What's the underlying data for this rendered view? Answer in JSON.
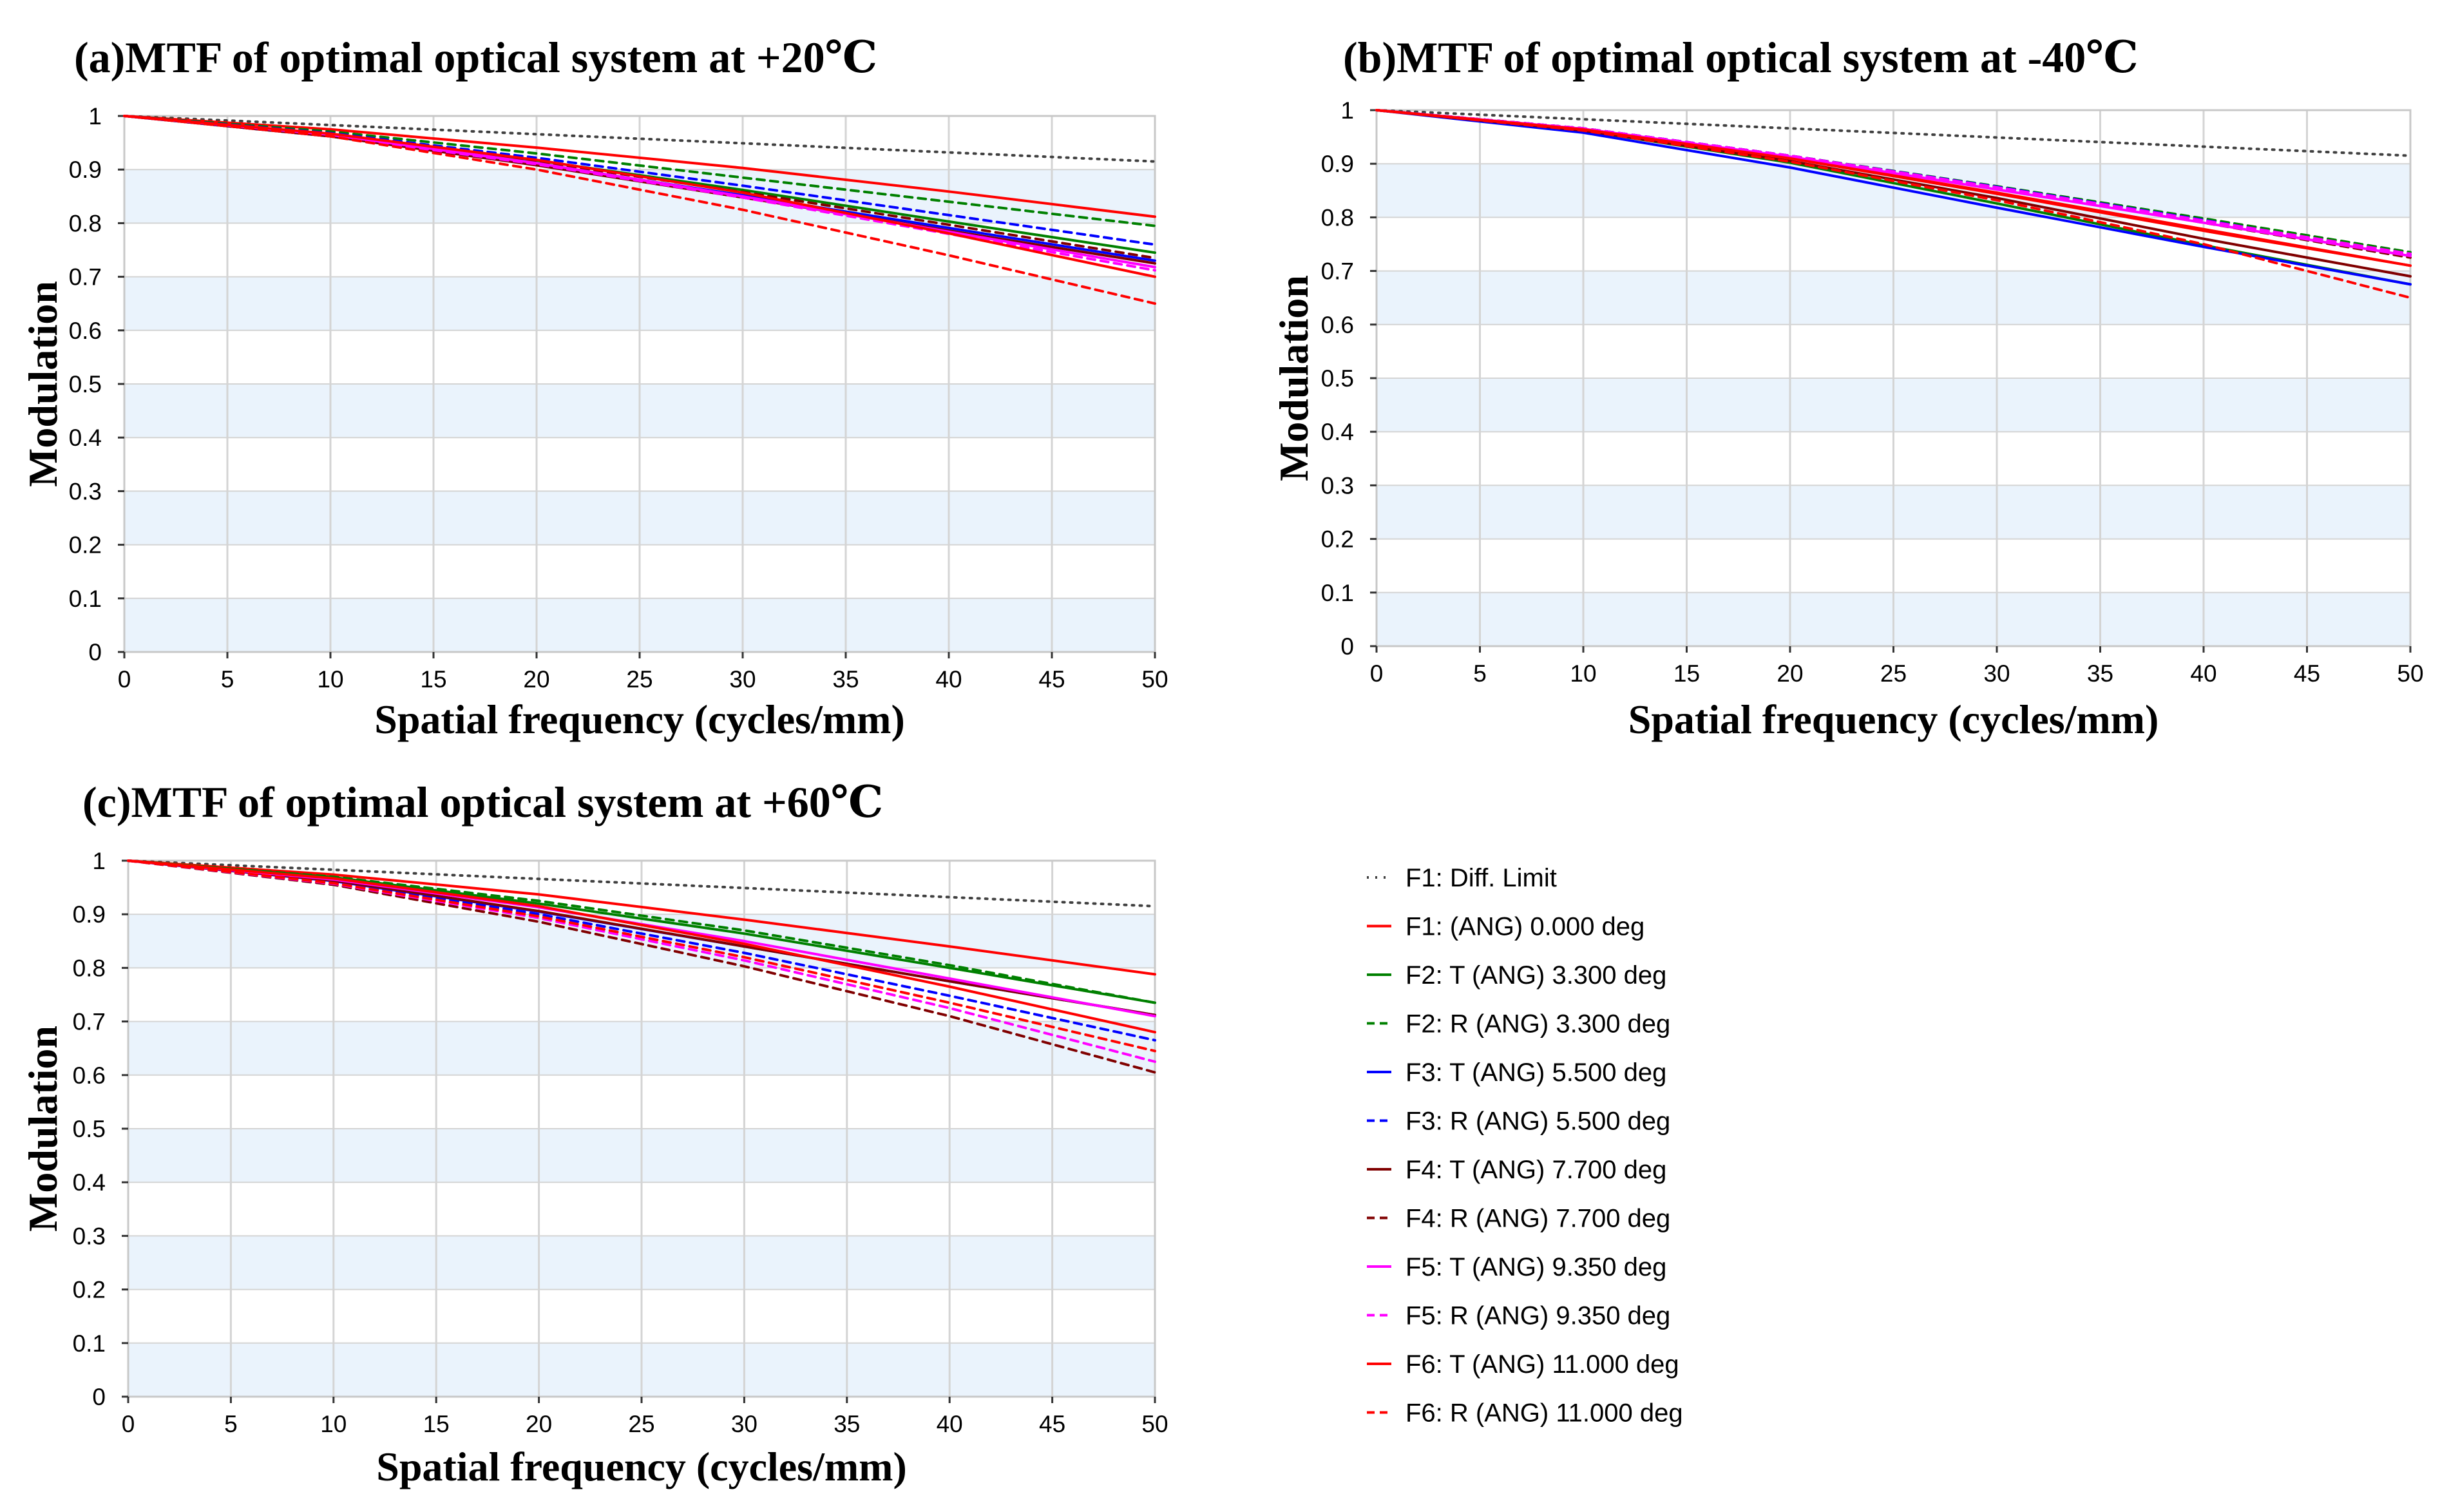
{
  "legend_entries": [
    {
      "label": "F1: Diff. Limit",
      "color": "#404040",
      "dash": "dot"
    },
    {
      "label": "F1: (ANG) 0.000 deg",
      "color": "#ff0000",
      "dash": "solid"
    },
    {
      "label": "F2: T (ANG) 3.300 deg",
      "color": "#008000",
      "dash": "solid"
    },
    {
      "label": "F2: R (ANG) 3.300 deg",
      "color": "#008000",
      "dash": "dash"
    },
    {
      "label": "F3: T (ANG) 5.500 deg",
      "color": "#0000ff",
      "dash": "solid"
    },
    {
      "label": "F3: R (ANG) 5.500 deg",
      "color": "#0000ff",
      "dash": "dash"
    },
    {
      "label": "F4: T (ANG) 7.700 deg",
      "color": "#800000",
      "dash": "solid"
    },
    {
      "label": "F4: R (ANG) 7.700 deg",
      "color": "#800000",
      "dash": "dash"
    },
    {
      "label": "F5: T (ANG) 9.350 deg",
      "color": "#ff00ff",
      "dash": "solid"
    },
    {
      "label": "F5: R (ANG) 9.350 deg",
      "color": "#ff00ff",
      "dash": "dash"
    },
    {
      "label": "F6: T (ANG) 11.000 deg",
      "color": "#ff0000",
      "dash": "solid"
    },
    {
      "label": "F6: R (ANG) 11.000 deg",
      "color": "#ff0000",
      "dash": "dash"
    }
  ],
  "colors": {
    "band": "#eaf3fc",
    "grid": "#d4d4d4",
    "frame": "#c8c8c8"
  },
  "chart_data": [
    {
      "type": "line",
      "title": "(a)MTF of optimal optical system at +20℃",
      "xlabel": "Spatial frequency (cycles/mm)",
      "ylabel": "Modulation",
      "xlim": [
        0,
        50
      ],
      "ylim": [
        0,
        1
      ],
      "xticks": [
        "0",
        "5",
        "10",
        "15",
        "20",
        "25",
        "30",
        "35",
        "40",
        "45",
        "50"
      ],
      "yticks": [
        "0",
        "0.1",
        "0.2",
        "0.3",
        "0.4",
        "0.5",
        "0.6",
        "0.7",
        "0.8",
        "0.9",
        "1"
      ],
      "grid": true,
      "x": [
        0,
        10,
        20,
        30,
        40,
        50
      ],
      "series": [
        {
          "name": "F1: Diff. Limit",
          "values": [
            1.0,
            0.983,
            0.966,
            0.949,
            0.932,
            0.915
          ]
        },
        {
          "name": "F1: (ANG) 0.000 deg",
          "values": [
            1.0,
            0.975,
            0.941,
            0.903,
            0.859,
            0.812
          ]
        },
        {
          "name": "F2: T (ANG) 3.300 deg",
          "values": [
            1.0,
            0.966,
            0.917,
            0.862,
            0.803,
            0.745
          ]
        },
        {
          "name": "F2: R (ANG) 3.300 deg",
          "values": [
            1.0,
            0.971,
            0.93,
            0.885,
            0.84,
            0.795
          ]
        },
        {
          "name": "F3: T (ANG) 5.500 deg",
          "values": [
            1.0,
            0.962,
            0.91,
            0.852,
            0.791,
            0.73
          ]
        },
        {
          "name": "F3: R (ANG) 5.500 deg",
          "values": [
            1.0,
            0.968,
            0.922,
            0.87,
            0.815,
            0.76
          ]
        },
        {
          "name": "F4: T (ANG) 7.700 deg",
          "values": [
            1.0,
            0.962,
            0.908,
            0.848,
            0.786,
            0.725
          ]
        },
        {
          "name": "F4: R (ANG) 7.700 deg",
          "values": [
            1.0,
            0.965,
            0.915,
            0.858,
            0.797,
            0.735
          ]
        },
        {
          "name": "F5: T (ANG) 9.350 deg",
          "values": [
            1.0,
            0.965,
            0.912,
            0.85,
            0.784,
            0.718
          ]
        },
        {
          "name": "F5: R (ANG) 9.350 deg",
          "values": [
            1.0,
            0.963,
            0.91,
            0.848,
            0.78,
            0.712
          ]
        },
        {
          "name": "F6: T (ANG) 11.000 deg",
          "values": [
            1.0,
            0.967,
            0.918,
            0.857,
            0.781,
            0.7
          ]
        },
        {
          "name": "F6: R (ANG) 11.000 deg",
          "values": [
            1.0,
            0.962,
            0.9,
            0.825,
            0.74,
            0.65
          ]
        }
      ]
    },
    {
      "type": "line",
      "title": "(b)MTF of optimal optical system at -40℃",
      "xlabel": "Spatial frequency (cycles/mm)",
      "ylabel": "Modulation",
      "xlim": [
        0,
        50
      ],
      "ylim": [
        0,
        1
      ],
      "xticks": [
        "0",
        "5",
        "10",
        "15",
        "20",
        "25",
        "30",
        "35",
        "40",
        "45",
        "50"
      ],
      "yticks": [
        "0",
        "0.1",
        "0.2",
        "0.3",
        "0.4",
        "0.5",
        "0.6",
        "0.7",
        "0.8",
        "0.9",
        "1"
      ],
      "grid": true,
      "x": [
        0,
        10,
        20,
        30,
        40,
        50
      ],
      "series": [
        {
          "name": "F1: Diff. Limit",
          "values": [
            1.0,
            0.983,
            0.966,
            0.949,
            0.932,
            0.915
          ]
        },
        {
          "name": "F1: (ANG) 0.000 deg",
          "values": [
            1.0,
            0.965,
            0.91,
            0.844,
            0.775,
            0.71
          ]
        },
        {
          "name": "F2: T (ANG) 3.300 deg",
          "values": [
            1.0,
            0.962,
            0.902,
            0.826,
            0.748,
            0.675
          ]
        },
        {
          "name": "F2: R (ANG) 3.300 deg",
          "values": [
            1.0,
            0.966,
            0.915,
            0.858,
            0.798,
            0.735
          ]
        },
        {
          "name": "F3: T (ANG) 5.500 deg",
          "values": [
            1.0,
            0.958,
            0.893,
            0.818,
            0.745,
            0.675
          ]
        },
        {
          "name": "F3: R (ANG) 5.500 deg",
          "values": [
            1.0,
            0.966,
            0.915,
            0.857,
            0.795,
            0.73
          ]
        },
        {
          "name": "F4: T (ANG) 7.700 deg",
          "values": [
            1.0,
            0.962,
            0.905,
            0.836,
            0.76,
            0.69
          ]
        },
        {
          "name": "F4: R (ANG) 7.700 deg",
          "values": [
            1.0,
            0.966,
            0.914,
            0.854,
            0.79,
            0.725
          ]
        },
        {
          "name": "F5: T (ANG) 9.350 deg",
          "values": [
            1.0,
            0.965,
            0.913,
            0.852,
            0.79,
            0.728
          ]
        },
        {
          "name": "F5: R (ANG) 9.350 deg",
          "values": [
            1.0,
            0.966,
            0.915,
            0.856,
            0.794,
            0.732
          ]
        },
        {
          "name": "F6: T (ANG) 11.000 deg",
          "values": [
            1.0,
            0.964,
            0.91,
            0.846,
            0.778,
            0.71
          ]
        },
        {
          "name": "F6: R (ANG) 11.000 deg",
          "values": [
            1.0,
            0.962,
            0.904,
            0.832,
            0.75,
            0.65
          ]
        }
      ]
    },
    {
      "type": "line",
      "title": "(c)MTF of optimal optical system at +60℃",
      "xlabel": "Spatial frequency (cycles/mm)",
      "ylabel": "Modulation",
      "xlim": [
        0,
        50
      ],
      "ylim": [
        0,
        1
      ],
      "xticks": [
        "0",
        "5",
        "10",
        "15",
        "20",
        "25",
        "30",
        "35",
        "40",
        "45",
        "50"
      ],
      "yticks": [
        "0",
        "0.1",
        "0.2",
        "0.3",
        "0.4",
        "0.5",
        "0.6",
        "0.7",
        "0.8",
        "0.9",
        "1"
      ],
      "grid": true,
      "x": [
        0,
        10,
        20,
        30,
        40,
        50
      ],
      "series": [
        {
          "name": "F1: Diff. Limit",
          "values": [
            1.0,
            0.983,
            0.966,
            0.949,
            0.932,
            0.915
          ]
        },
        {
          "name": "F1: (ANG) 0.000 deg",
          "values": [
            1.0,
            0.974,
            0.937,
            0.89,
            0.84,
            0.788
          ]
        },
        {
          "name": "F2: T (ANG) 3.300 deg",
          "values": [
            1.0,
            0.969,
            0.92,
            0.864,
            0.8,
            0.735
          ]
        },
        {
          "name": "F2: R (ANG) 3.300 deg",
          "values": [
            1.0,
            0.97,
            0.925,
            0.87,
            0.805,
            0.735
          ]
        },
        {
          "name": "F3: T (ANG) 5.500 deg",
          "values": [
            1.0,
            0.962,
            0.905,
            0.84,
            0.775,
            0.712
          ]
        },
        {
          "name": "F3: R (ANG) 5.500 deg",
          "values": [
            1.0,
            0.96,
            0.9,
            0.828,
            0.748,
            0.665
          ]
        },
        {
          "name": "F4: T (ANG) 7.700 deg",
          "values": [
            1.0,
            0.963,
            0.906,
            0.84,
            0.775,
            0.712
          ]
        },
        {
          "name": "F4: R (ANG) 7.700 deg",
          "values": [
            1.0,
            0.955,
            0.886,
            0.803,
            0.71,
            0.605
          ]
        },
        {
          "name": "F5: T (ANG) 9.350 deg",
          "values": [
            1.0,
            0.965,
            0.913,
            0.85,
            0.78,
            0.71
          ]
        },
        {
          "name": "F5: R (ANG) 9.350 deg",
          "values": [
            1.0,
            0.957,
            0.893,
            0.814,
            0.725,
            0.625
          ]
        },
        {
          "name": "F6: T (ANG) 11.000 deg",
          "values": [
            1.0,
            0.967,
            0.915,
            0.845,
            0.765,
            0.68
          ]
        },
        {
          "name": "F6: R (ANG) 11.000 deg",
          "values": [
            1.0,
            0.958,
            0.896,
            0.82,
            0.735,
            0.645
          ]
        }
      ]
    }
  ]
}
